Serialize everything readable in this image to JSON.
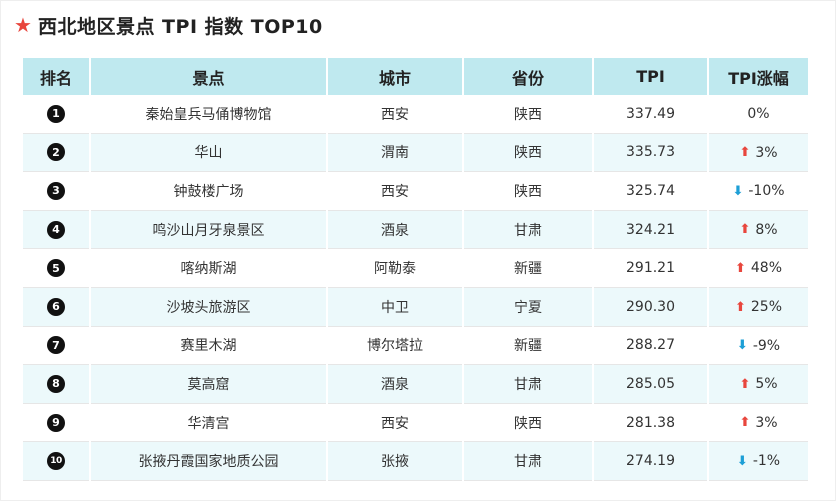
{
  "header": {
    "title": "西北地区景点 TPI 指数 TOP10",
    "star_color": "#e8463d"
  },
  "table": {
    "columns": [
      "排名",
      "景点",
      "城市",
      "省份",
      "TPI",
      "TPI涨幅"
    ],
    "rows": [
      {
        "rank": "1",
        "name": "秦始皇兵马俑博物馆",
        "city": "西安",
        "province": "陕西",
        "tpi": "337.49",
        "trend": "none",
        "change": "0%"
      },
      {
        "rank": "2",
        "name": "华山",
        "city": "渭南",
        "province": "陕西",
        "tpi": "335.73",
        "trend": "up",
        "change": "3%"
      },
      {
        "rank": "3",
        "name": "钟鼓楼广场",
        "city": "西安",
        "province": "陕西",
        "tpi": "325.74",
        "trend": "down",
        "change": "-10%"
      },
      {
        "rank": "4",
        "name": "鸣沙山月牙泉景区",
        "city": "酒泉",
        "province": "甘肃",
        "tpi": "324.21",
        "trend": "up",
        "change": "8%"
      },
      {
        "rank": "5",
        "name": "喀纳斯湖",
        "city": "阿勒泰",
        "province": "新疆",
        "tpi": "291.21",
        "trend": "up",
        "change": "48%"
      },
      {
        "rank": "6",
        "name": "沙坡头旅游区",
        "city": "中卫",
        "province": "宁夏",
        "tpi": "290.30",
        "trend": "up",
        "change": "25%"
      },
      {
        "rank": "7",
        "name": "赛里木湖",
        "city": "博尔塔拉",
        "province": "新疆",
        "tpi": "288.27",
        "trend": "down",
        "change": "-9%"
      },
      {
        "rank": "8",
        "name": "莫高窟",
        "city": "酒泉",
        "province": "甘肃",
        "tpi": "285.05",
        "trend": "up",
        "change": "5%"
      },
      {
        "rank": "9",
        "name": "华清宫",
        "city": "西安",
        "province": "陕西",
        "tpi": "281.38",
        "trend": "up",
        "change": "3%"
      },
      {
        "rank": "10",
        "name": "张掖丹霞国家地质公园",
        "city": "张掖",
        "province": "甘肃",
        "tpi": "274.19",
        "trend": "down",
        "change": "-1%"
      }
    ]
  },
  "colors": {
    "header_bg": "#bfe9ef",
    "alt_row_bg": "#ecf9fb",
    "up": "#e8463d",
    "down": "#1d9fd6"
  }
}
